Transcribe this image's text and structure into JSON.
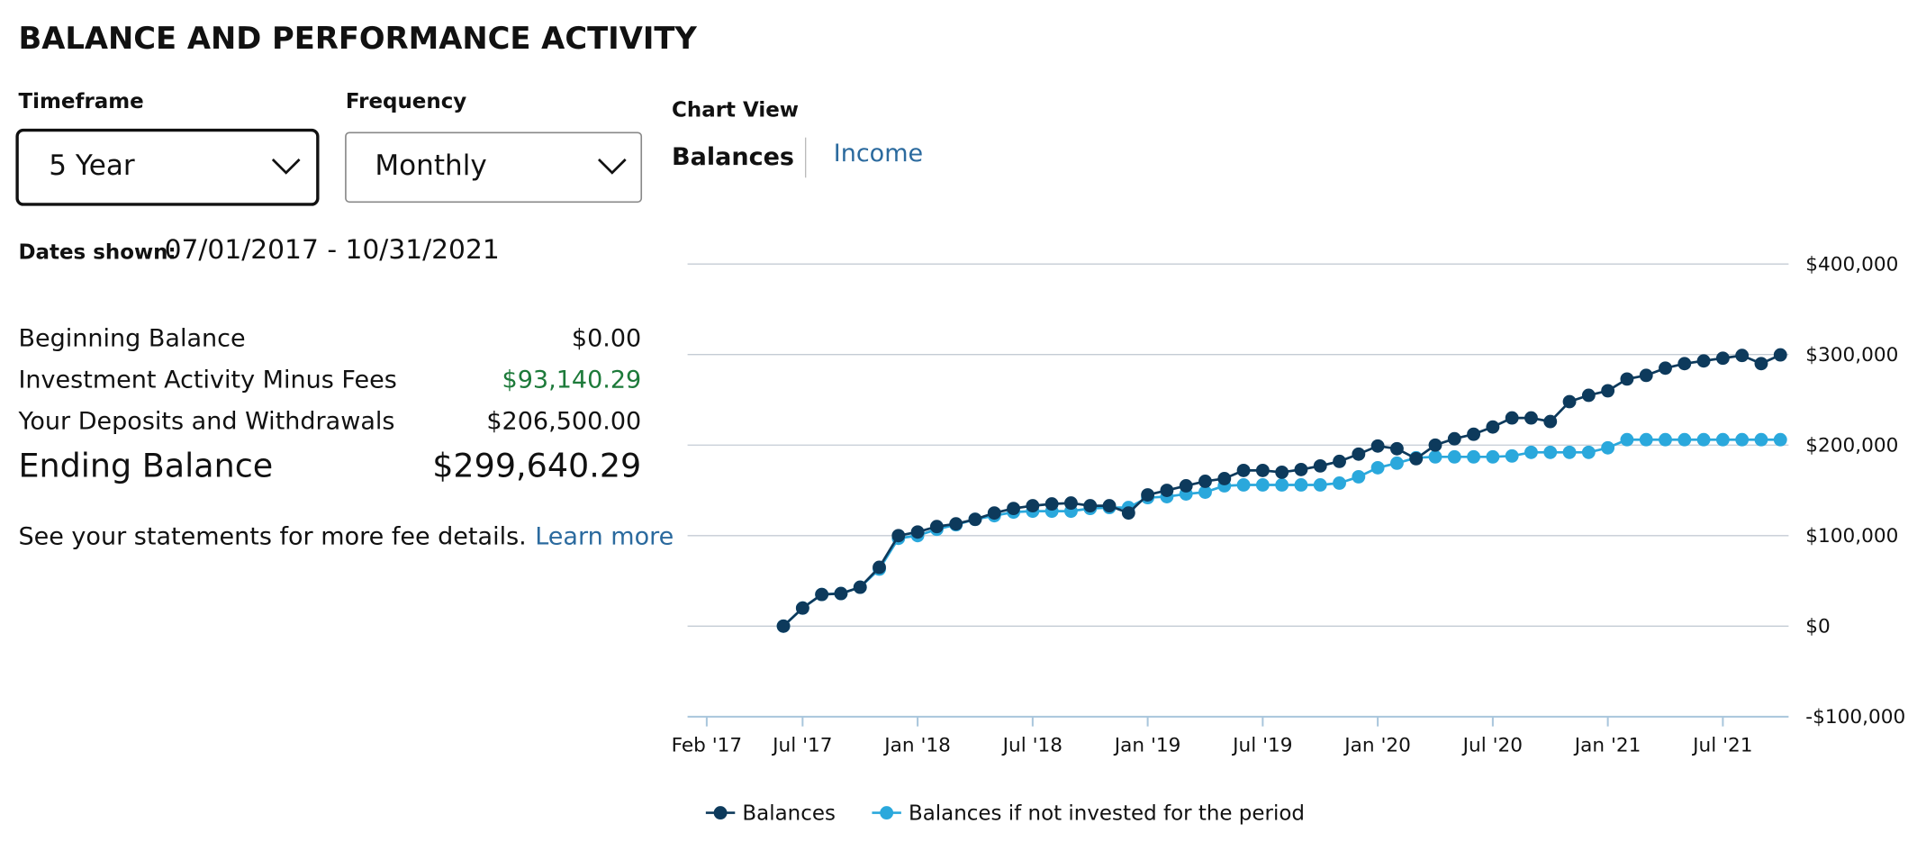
{
  "header": {
    "title": "BALANCE AND PERFORMANCE ACTIVITY"
  },
  "controls": {
    "timeframe": {
      "label": "Timeframe",
      "value": "5 Year"
    },
    "frequency": {
      "label": "Frequency",
      "value": "Monthly"
    }
  },
  "dates_shown": {
    "label": "Dates shown:",
    "value": "07/01/2017 - 10/31/2021"
  },
  "summary": {
    "rows": [
      [
        "Beginning Balance",
        "$0.00"
      ],
      [
        "Investment Activity Minus Fees",
        "$93,140.29"
      ],
      [
        "Your Deposits and Withdrawals",
        "$206,500.00"
      ]
    ],
    "ending": [
      "Ending Balance",
      "$299,640.29"
    ]
  },
  "note": {
    "text": "See your statements for more fee details.",
    "link": "Learn more"
  },
  "chart_view": {
    "label": "Chart View",
    "tabs": [
      "Balances",
      "Income"
    ]
  },
  "chart_data": {
    "type": "line",
    "x": [
      "2017-06",
      "2017-07",
      "2017-08",
      "2017-09",
      "2017-10",
      "2017-11",
      "2017-12",
      "2018-01",
      "2018-02",
      "2018-03",
      "2018-04",
      "2018-05",
      "2018-06",
      "2018-07",
      "2018-08",
      "2018-09",
      "2018-10",
      "2018-11",
      "2018-12",
      "2019-01",
      "2019-02",
      "2019-03",
      "2019-04",
      "2019-05",
      "2019-06",
      "2019-07",
      "2019-08",
      "2019-09",
      "2019-10",
      "2019-11",
      "2019-12",
      "2020-01",
      "2020-02",
      "2020-03",
      "2020-04",
      "2020-05",
      "2020-06",
      "2020-07",
      "2020-08",
      "2020-09",
      "2020-10",
      "2020-11",
      "2020-12",
      "2021-01",
      "2021-02",
      "2021-03",
      "2021-04",
      "2021-05",
      "2021-06",
      "2021-07",
      "2021-08",
      "2021-09",
      "2021-10"
    ],
    "series": [
      {
        "name": "Balances",
        "color": "#0d3a5c",
        "values": [
          0,
          20000,
          35000,
          36000,
          43000,
          65000,
          100000,
          104000,
          110000,
          113000,
          118000,
          125000,
          130000,
          133000,
          135000,
          136000,
          133000,
          133000,
          125000,
          145000,
          150000,
          155000,
          160000,
          163000,
          172000,
          172000,
          170000,
          173000,
          177000,
          182000,
          190000,
          199000,
          196000,
          185000,
          200000,
          207000,
          212000,
          220000,
          230000,
          230000,
          226000,
          248000,
          255000,
          260000,
          273000,
          277000,
          285000,
          290000,
          293000,
          296000,
          299000,
          290000,
          299640.29
        ]
      },
      {
        "name": "Balances if not invested for the period",
        "color": "#2aa8dc",
        "values": [
          0,
          20000,
          35000,
          36000,
          43000,
          63000,
          97000,
          100000,
          107000,
          112000,
          118000,
          122000,
          126000,
          127000,
          127000,
          127000,
          130000,
          131000,
          131000,
          142000,
          143000,
          146000,
          148000,
          155000,
          156000,
          156000,
          156000,
          156000,
          156000,
          158000,
          165000,
          175000,
          180000,
          186000,
          187000,
          187000,
          187000,
          187000,
          188000,
          192000,
          192000,
          192000,
          192000,
          197000,
          206000,
          206000,
          206000,
          206000,
          206000,
          206000,
          206000,
          206000,
          206000
        ]
      }
    ],
    "xlim": [
      "2017-01",
      "2021-11"
    ],
    "xticks": [
      {
        "value": "2017-02",
        "label": "Feb '17"
      },
      {
        "value": "2017-07",
        "label": "Jul '17"
      },
      {
        "value": "2018-01",
        "label": "Jan '18"
      },
      {
        "value": "2018-07",
        "label": "Jul '18"
      },
      {
        "value": "2019-01",
        "label": "Jan '19"
      },
      {
        "value": "2019-07",
        "label": "Jul '19"
      },
      {
        "value": "2020-01",
        "label": "Jan '20"
      },
      {
        "value": "2020-07",
        "label": "Jul '20"
      },
      {
        "value": "2021-01",
        "label": "Jan '21"
      },
      {
        "value": "2021-07",
        "label": "Jul '21"
      }
    ],
    "ylim": [
      -100000,
      400000
    ],
    "yticks": [
      {
        "value": -100000,
        "label": "-$100,000"
      },
      {
        "value": 0,
        "label": "$0"
      },
      {
        "value": 100000,
        "label": "$100,000"
      },
      {
        "value": 200000,
        "label": "$200,000"
      },
      {
        "value": 300000,
        "label": "$300,000"
      },
      {
        "value": 400000,
        "label": "$400,000"
      }
    ],
    "grid": true
  }
}
